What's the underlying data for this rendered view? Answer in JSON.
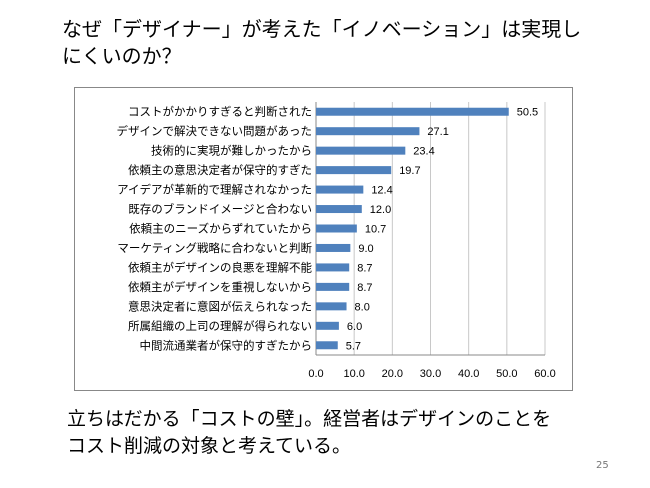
{
  "slide": {
    "title_lines": [
      "なぜ「デザイナー」が考えた「イノベーション」は実現し",
      "にくいのか？"
    ],
    "caption_lines": [
      "立ちはだかる「コストの壁」。経営者はデザインのことを",
      "コスト削減の対象と考えている。"
    ],
    "page_number": "25"
  },
  "chart_data": {
    "type": "bar",
    "orientation": "horizontal",
    "title": "",
    "xlabel": "",
    "ylabel": "",
    "xlim": [
      0,
      60
    ],
    "xticks": [
      "0.0",
      "10.0",
      "20.0",
      "30.0",
      "40.0",
      "50.0",
      "60.0"
    ],
    "grid": true,
    "bar_color": "#4f81bd",
    "categories": [
      "コストがかかりすぎると判断された",
      "デザインで解決できない問題があった",
      "技術的に実現が難しかったから",
      "依頼主の意思決定者が保守的すぎた",
      "アイデアが革新的で理解されなかった",
      "既存のブランドイメージと合わない",
      "依頼主のニーズからずれていたから",
      "マーケティング戦略に合わないと判断",
      "依頼主がデザインの良悪を理解不能",
      "依頼主がデザインを重視しないから",
      "意思決定者に意図が伝えられなった",
      "所属組織の上司の理解が得られない",
      "中間流通業者が保守的すぎたから"
    ],
    "values": [
      50.5,
      27.1,
      23.4,
      19.7,
      12.4,
      12.0,
      10.7,
      9.0,
      8.7,
      8.7,
      8.0,
      6.0,
      5.7
    ],
    "value_labels": [
      "50.5",
      "27.1",
      "23.4",
      "19.7",
      "12.4",
      "12.0",
      "10.7",
      "9.0",
      "8.7",
      "8.7",
      "8.0",
      "6.0",
      "5.7"
    ]
  }
}
